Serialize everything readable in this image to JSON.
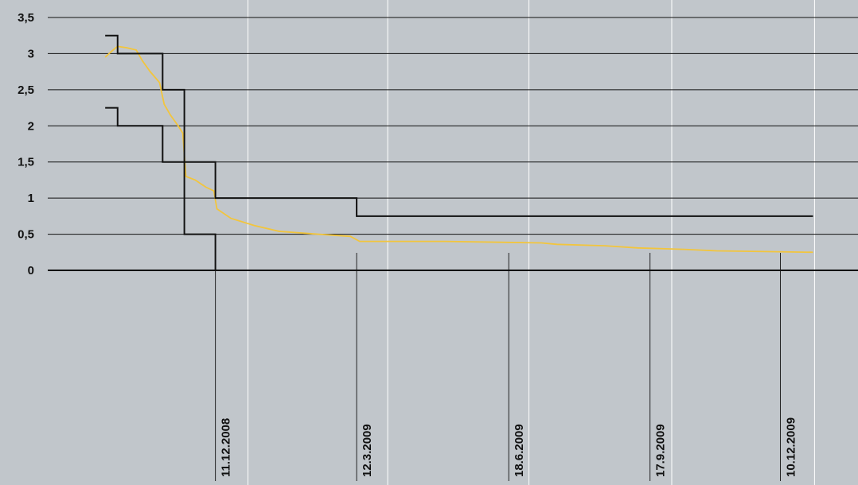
{
  "chart_data": {
    "type": "line",
    "xlim": [
      "25.8.2008",
      "29.1.2010"
    ],
    "xticks": [
      "11.12.2008",
      "12.3.2009",
      "18.6.2009",
      "17.9.2009",
      "10.12.2009"
    ],
    "xgrid": [
      "1.1.2009",
      "1.4.2009",
      "1.7.2009",
      "1.10.2009",
      "1.1.2010"
    ],
    "ylim": [
      0,
      3.5
    ],
    "yticks": [
      {
        "value": 3.5,
        "label": "3,5"
      },
      3,
      {
        "value": 2.5,
        "label": "2,5"
      },
      2,
      {
        "value": 1.5,
        "label": "1,5"
      },
      1,
      {
        "value": 0.5,
        "label": "0,5"
      },
      0
    ],
    "grid": true,
    "series": [
      {
        "color": "#111111",
        "step": true,
        "x": [
          "1.10.2008",
          "9.10.2008",
          "7.11.2008",
          "21.11.2008",
          "11.12.2008",
          "12.3.2009",
          "31.12.2009"
        ],
        "values": [
          3.25,
          3,
          2.5,
          1.5,
          1,
          0.75,
          0.75
        ]
      },
      {
        "color": "#111111",
        "step": true,
        "x": [
          "1.10.2008",
          "9.10.2008",
          "7.11.2008",
          "21.11.2008",
          "11.12.2008",
          "12.3.2009",
          "31.12.2009"
        ],
        "values": [
          2.25,
          2,
          1.5,
          0.5,
          0,
          0,
          0
        ]
      },
      {
        "color": "#f2c53d",
        "step": false,
        "x": [
          "1.10.2008",
          "5.10.2008",
          "9.10.2008",
          "15.10.2008",
          "21.10.2008",
          "25.10.2008",
          "30.10.2008",
          "5.11.2008",
          "8.11.2008",
          "12.11.2008",
          "17.11.2008",
          "20.11.2008",
          "22.11.2008",
          "28.11.2008",
          "5.12.2008",
          "10.12.2008",
          "12.12.2008",
          "21.12.2008",
          "5.1.2009",
          "21.1.2009",
          "15.2.2009",
          "8.3.2009",
          "14.3.2009",
          "8.4.2009",
          "8.5.2009",
          "8.6.2009",
          "9.7.2009",
          "19.7.2009",
          "19.8.2009",
          "9.9.2009",
          "9.10.2009",
          "30.10.2009",
          "30.11.2009",
          "31.12.2009"
        ],
        "values": [
          2.95,
          3.03,
          3.1,
          3.08,
          3.05,
          2.9,
          2.75,
          2.6,
          2.3,
          2.15,
          2.0,
          1.9,
          1.3,
          1.25,
          1.15,
          1.1,
          0.85,
          0.72,
          0.62,
          0.54,
          0.5,
          0.47,
          0.4,
          0.4,
          0.4,
          0.39,
          0.38,
          0.36,
          0.34,
          0.31,
          0.29,
          0.27,
          0.26,
          0.25
        ]
      }
    ]
  }
}
